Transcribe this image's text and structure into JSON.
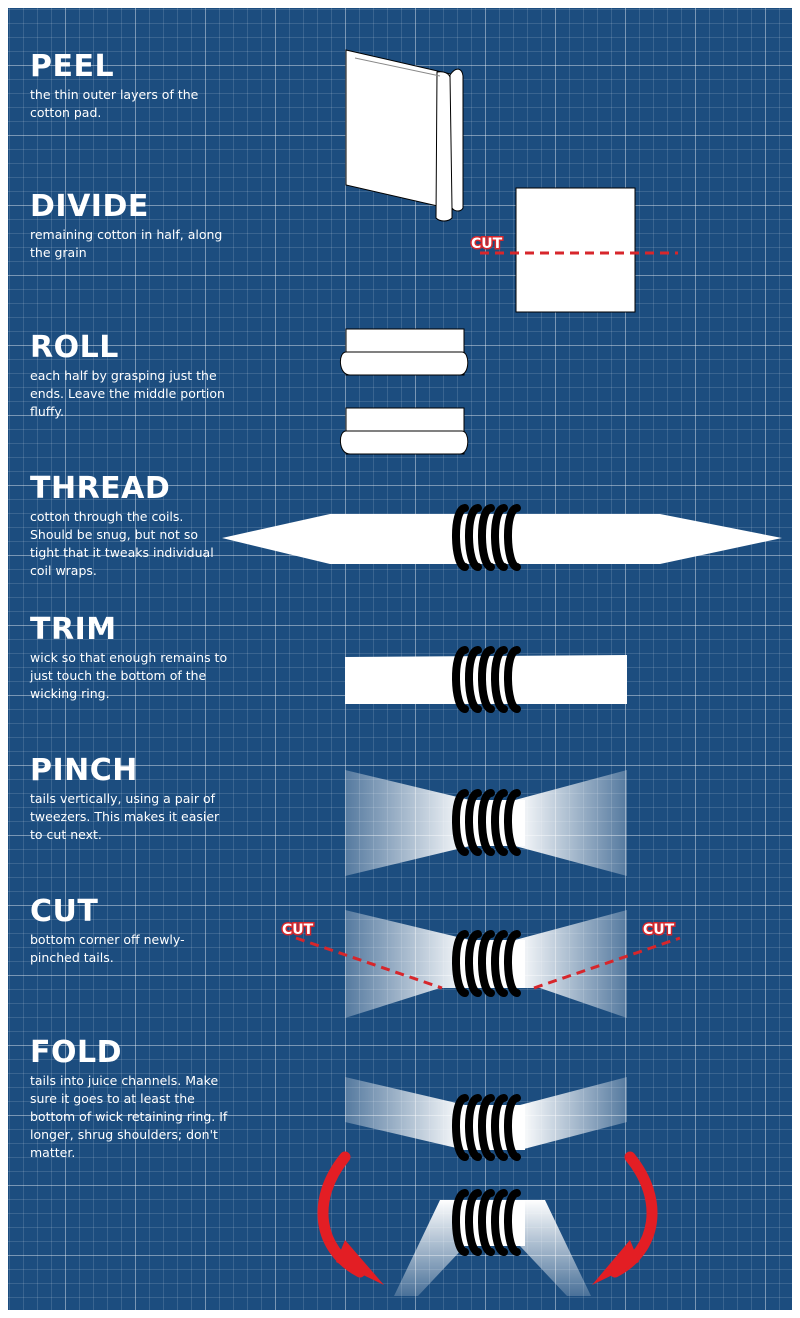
{
  "colors": {
    "background": "#1c4d7f",
    "accent": "#e31e24",
    "cut_line": "#d7262b",
    "coil": "#0a0a0a"
  },
  "steps": [
    {
      "title": "PEEL",
      "text": "the thin outer layers of the cotton pad."
    },
    {
      "title": "DIVIDE",
      "text": "remaining cotton in half, along the grain"
    },
    {
      "title": "ROLL",
      "text": "each half by grasping just the ends. Leave the middle portion fluffy."
    },
    {
      "title": "THREAD",
      "text": "cotton through the coils. Should be snug, but not so tight that it tweaks individual coil wraps."
    },
    {
      "title": "TRIM",
      "text": "wick so that enough remains to just touch the bottom of the wicking ring."
    },
    {
      "title": "PINCH",
      "text": "tails vertically, using a pair of tweezers.  This makes it easier to cut next."
    },
    {
      "title": "CUT",
      "text": "bottom corner off newly-pinched tails."
    },
    {
      "title": "FOLD",
      "text": "tails into juice channels. Make sure it goes to at least the bottom of wick retaining ring. If longer, shrug shoulders; don't matter."
    }
  ],
  "cut_labels": {
    "divide": "CUT",
    "left": "CUT",
    "right": "CUT"
  }
}
